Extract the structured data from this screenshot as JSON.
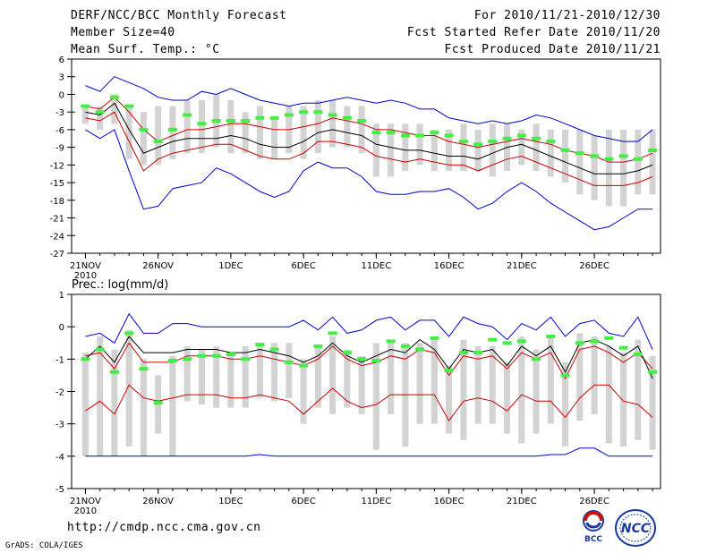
{
  "header": {
    "title": "DERF/NCC/BCC Monthly Forecast",
    "member_size": "Member Size=40",
    "variable_temp": "Mean Surf. Temp.: °C",
    "forecast_period": "For 2010/11/21-2010/12/30",
    "fcst_started": "Fcst Started Refer Date 2010/11/20",
    "fcst_produced": "Fcst Produced Date 2010/11/21"
  },
  "footer": {
    "url": "http://cmdp.ncc.cma.gov.cn",
    "credit": "GrADS: COLA/IGES",
    "logo_bcc": "BCC",
    "logo_ncc": "NCC"
  },
  "colors": {
    "box": "#d3d3d3",
    "max": "#0000cc",
    "min": "#0000cc",
    "upper": "#cc0000",
    "lower": "#cc0000",
    "mean": "#000000",
    "obs": "#44ee44"
  },
  "chart_data": [
    {
      "type": "box",
      "title": "Mean Surf. Temp.: °C",
      "x_tick_labels": [
        "21NOV",
        "26NOV",
        "1DEC",
        "6DEC",
        "11DEC",
        "16DEC",
        "21DEC",
        "26DEC"
      ],
      "x_year_label": "2010",
      "ylim": [
        -27,
        6
      ],
      "y_ticks": [
        6,
        3,
        0,
        -3,
        -6,
        -9,
        -12,
        -15,
        -18,
        -21,
        -24,
        -27
      ],
      "days": 40,
      "series": [
        {
          "name": "max",
          "values": [
            1.5,
            0.5,
            3,
            2,
            1,
            -0.5,
            -1,
            -1,
            0.5,
            0,
            1,
            0,
            -1,
            -1.5,
            -2,
            -1.5,
            -1.5,
            -1,
            -0.5,
            -1,
            -1.5,
            -1,
            -1.5,
            -2.5,
            -2.5,
            -4,
            -4.5,
            -5,
            -4.5,
            -5,
            -4.5,
            -3.5,
            -4,
            -5,
            -6,
            -7,
            -7.5,
            -8,
            -8,
            -6
          ]
        },
        {
          "name": "upper",
          "values": [
            -2,
            -2.5,
            -0.5,
            -3,
            -6,
            -8,
            -7,
            -6,
            -6,
            -5.5,
            -5,
            -5,
            -5.5,
            -6,
            -6,
            -5.5,
            -5,
            -4,
            -4.5,
            -5,
            -6,
            -6,
            -6.5,
            -7,
            -7,
            -8,
            -8.5,
            -9,
            -8.5,
            -8,
            -7.5,
            -8,
            -8.5,
            -9.5,
            -10,
            -10.5,
            -11.5,
            -11.5,
            -11,
            -10
          ]
        },
        {
          "name": "mean",
          "values": [
            -3,
            -3.5,
            -1.5,
            -6,
            -10,
            -9,
            -8,
            -7.5,
            -7.5,
            -7.5,
            -7,
            -7.5,
            -8.5,
            -9,
            -9,
            -8,
            -6.5,
            -6,
            -6.5,
            -7,
            -8.5,
            -9,
            -9.5,
            -9.5,
            -10,
            -10.5,
            -10.5,
            -11,
            -10,
            -9,
            -8.5,
            -9.5,
            -10.5,
            -11.5,
            -12.5,
            -13.5,
            -13.5,
            -13.5,
            -13,
            -12
          ]
        },
        {
          "name": "lower",
          "values": [
            -4,
            -4.5,
            -3,
            -8,
            -13,
            -11,
            -10,
            -9.5,
            -9,
            -8.5,
            -8.5,
            -9.5,
            -10.5,
            -11,
            -11,
            -10,
            -8,
            -8,
            -8.5,
            -9,
            -10.5,
            -11,
            -11.5,
            -11,
            -11.5,
            -12,
            -12,
            -13,
            -12,
            -11,
            -10.5,
            -11.5,
            -12.5,
            -13.5,
            -14.5,
            -15.5,
            -15.5,
            -15.5,
            -15,
            -14
          ]
        },
        {
          "name": "min",
          "values": [
            -6,
            -7.5,
            -6,
            -13,
            -19.5,
            -19,
            -16,
            -15.5,
            -15,
            -12.5,
            -13.5,
            -15,
            -16.5,
            -17.5,
            -16.5,
            -13,
            -11.5,
            -12.5,
            -12.5,
            -14,
            -16.5,
            -17,
            -17,
            -16.5,
            -16.5,
            -16,
            -17.5,
            -19.5,
            -18.5,
            -16.5,
            -15,
            -16.5,
            -18.5,
            -20,
            -21.5,
            -23,
            -22.5,
            -21,
            -19.5,
            -19.5
          ]
        },
        {
          "name": "box_high",
          "values": [
            -2,
            -2,
            0,
            -2,
            -3,
            -2,
            -2,
            -1,
            -1,
            0,
            -1,
            -3,
            -2,
            -4,
            -2,
            -2,
            -1,
            -1,
            -2,
            -2,
            -5,
            -5,
            -5,
            -5,
            -6,
            -6,
            -5,
            -6,
            -5,
            -5,
            -6,
            -5,
            -6,
            -6,
            -6,
            -7,
            -6,
            -6,
            -6,
            -6
          ]
        },
        {
          "name": "box_low",
          "values": [
            -5,
            -6,
            -5,
            -11,
            -12,
            -12,
            -11,
            -10,
            -10,
            -9,
            -10,
            -10,
            -11,
            -11,
            -10,
            -11,
            -10,
            -9,
            -9,
            -10,
            -14,
            -14,
            -13,
            -12,
            -13,
            -13,
            -13,
            -13,
            -14,
            -13,
            -12,
            -13,
            -14,
            -15,
            -17,
            -18,
            -19,
            -19,
            -17,
            -17
          ]
        },
        {
          "name": "observed",
          "values": [
            -2,
            -3,
            -0.5,
            -2,
            -6,
            -8,
            -6,
            -3.5,
            -5,
            -4.5,
            -4.5,
            -4.5,
            -4,
            -4,
            -3.5,
            -3,
            -3,
            -3.5,
            -4,
            -4.5,
            -6.5,
            -6.5,
            -7,
            -7,
            -6.5,
            -7,
            -8,
            -8.5,
            -8,
            -7.5,
            -7,
            -7.5,
            -8,
            -9.5,
            -10,
            -10.5,
            -11,
            -10.5,
            -11,
            -9.5
          ]
        }
      ]
    },
    {
      "type": "box",
      "title": "Prec.: log(mm/d)",
      "x_tick_labels": [
        "21NOV",
        "26NOV",
        "1DEC",
        "6DEC",
        "11DEC",
        "16DEC",
        "21DEC",
        "26DEC"
      ],
      "x_year_label": "2010",
      "ylim": [
        -5,
        1
      ],
      "y_ticks": [
        1,
        0,
        -1,
        -2,
        -3,
        -4,
        -5
      ],
      "days": 40,
      "series": [
        {
          "name": "max",
          "values": [
            -0.3,
            -0.2,
            -0.5,
            0.4,
            -0.2,
            -0.2,
            0.1,
            0.1,
            0,
            0,
            0,
            0,
            0,
            0,
            0,
            0.2,
            -0.1,
            0.3,
            -0.2,
            -0.1,
            0.2,
            0.3,
            -0.1,
            0.2,
            0.2,
            -0.3,
            0.3,
            0.1,
            0,
            -0.4,
            0.1,
            -0.1,
            0.3,
            -0.3,
            0.1,
            0.2,
            -0.2,
            -0.3,
            0.3,
            -0.7
          ]
        },
        {
          "name": "upper",
          "values": [
            -0.9,
            -0.8,
            -1.3,
            -0.5,
            -1.1,
            -1.1,
            -1.1,
            -0.9,
            -0.9,
            -0.9,
            -1.0,
            -1.0,
            -0.9,
            -1.0,
            -1.1,
            -1.2,
            -1.0,
            -0.6,
            -1.0,
            -1.2,
            -1.1,
            -0.9,
            -1.0,
            -0.7,
            -0.8,
            -1.5,
            -0.9,
            -1.0,
            -0.9,
            -1.3,
            -0.8,
            -1.0,
            -0.8,
            -1.6,
            -0.7,
            -0.6,
            -0.8,
            -1.1,
            -0.8,
            -1.3
          ]
        },
        {
          "name": "mean",
          "values": [
            -1.0,
            -0.6,
            -1.1,
            -0.3,
            -0.8,
            -0.8,
            -0.8,
            -0.7,
            -0.7,
            -0.7,
            -0.8,
            -0.8,
            -0.7,
            -0.8,
            -0.9,
            -1.1,
            -0.9,
            -0.5,
            -0.9,
            -1.1,
            -0.9,
            -0.7,
            -0.8,
            -0.4,
            -0.7,
            -1.3,
            -0.7,
            -0.8,
            -0.7,
            -1.2,
            -0.6,
            -0.9,
            -0.6,
            -1.4,
            -0.5,
            -0.4,
            -0.6,
            -0.9,
            -0.6,
            -1.6
          ]
        },
        {
          "name": "lower",
          "values": [
            -2.6,
            -2.3,
            -2.7,
            -1.8,
            -2.2,
            -2.3,
            -2.2,
            -2.1,
            -2.1,
            -2.1,
            -2.2,
            -2.2,
            -2.1,
            -2.2,
            -2.3,
            -2.7,
            -2.3,
            -1.9,
            -2.3,
            -2.5,
            -2.4,
            -2.1,
            -2.1,
            -2.1,
            -2.1,
            -2.9,
            -2.3,
            -2.2,
            -2.3,
            -2.6,
            -2.1,
            -2.3,
            -2.3,
            -2.8,
            -2.2,
            -1.8,
            -1.8,
            -2.3,
            -2.4,
            -2.8
          ]
        },
        {
          "name": "min",
          "values": [
            -4,
            -4,
            -4,
            -4,
            -4,
            -4,
            -4,
            -4,
            -4,
            -4,
            -4,
            -4,
            -3.95,
            -4,
            -4,
            -4,
            -4,
            -4,
            -4,
            -4,
            -4,
            -4,
            -4,
            -4,
            -4,
            -4,
            -4,
            -4,
            -4,
            -4,
            -4,
            -4,
            -3.95,
            -3.95,
            -3.75,
            -3.75,
            -4,
            -4,
            -4,
            -4
          ]
        },
        {
          "name": "box_high",
          "values": [
            -0.8,
            -0.3,
            -0.7,
            -0.1,
            -1.0,
            -1.5,
            -0.9,
            -0.6,
            -0.7,
            -0.6,
            -0.8,
            -0.6,
            -0.6,
            -0.5,
            -0.5,
            -1.0,
            -0.6,
            -0.3,
            -0.7,
            -0.9,
            -0.5,
            -0.4,
            -0.5,
            -0.5,
            -0.4,
            -1.2,
            -0.4,
            -0.6,
            -0.6,
            -1.1,
            -0.3,
            -0.7,
            -0.3,
            -1.1,
            -0.2,
            -0.3,
            -0.6,
            -0.8,
            -0.4,
            -0.9
          ]
        },
        {
          "name": "box_low",
          "values": [
            -4.0,
            -4.0,
            -4.0,
            -3.7,
            -4.0,
            -3.3,
            -4.0,
            -2.3,
            -2.4,
            -2.5,
            -2.5,
            -2.5,
            -2.2,
            -2.3,
            -2.2,
            -3.0,
            -2.5,
            -2.7,
            -2.5,
            -2.7,
            -3.8,
            -2.7,
            -3.7,
            -3.0,
            -3.0,
            -3.3,
            -3.5,
            -3.0,
            -3.0,
            -3.3,
            -3.6,
            -3.3,
            -3.0,
            -3.7,
            -2.9,
            -2.7,
            -3.6,
            -3.7,
            -3.5,
            -3.8
          ]
        },
        {
          "name": "observed",
          "values": [
            -1.0,
            -0.7,
            -1.4,
            -0.2,
            -1.3,
            -2.35,
            -1.05,
            -1.0,
            -0.9,
            -0.9,
            -0.85,
            -1.0,
            -0.55,
            -0.7,
            -1.1,
            -1.2,
            -0.6,
            -0.2,
            -0.8,
            -1.0,
            -1.05,
            -0.45,
            -0.6,
            -0.7,
            -0.35,
            -1.35,
            -0.8,
            -0.8,
            -0.4,
            -0.5,
            -0.45,
            -1.0,
            -0.3,
            -1.5,
            -0.5,
            -0.45,
            -0.35,
            -0.65,
            -0.85,
            -1.4
          ]
        }
      ]
    }
  ]
}
